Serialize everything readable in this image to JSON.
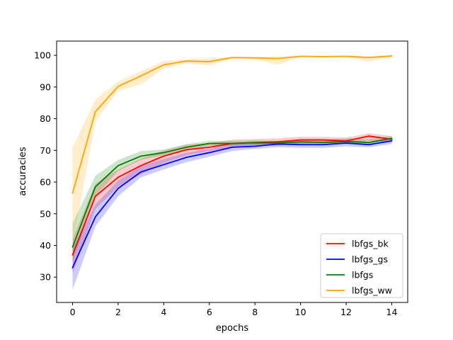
{
  "chart_data": {
    "type": "line",
    "title": "",
    "xlabel": "epochs",
    "ylabel": "accuracies",
    "xlim": [
      -0.7,
      14.7
    ],
    "ylim": [
      22,
      104.5
    ],
    "xticks": [
      0,
      2,
      4,
      6,
      8,
      10,
      12,
      14
    ],
    "yticks": [
      30,
      40,
      50,
      60,
      70,
      80,
      90,
      100
    ],
    "grid": false,
    "legend_position": "bottom-right",
    "x": [
      0,
      1,
      2,
      3,
      4,
      5,
      6,
      7,
      8,
      9,
      10,
      11,
      12,
      13,
      14
    ],
    "series": [
      {
        "name": "lbfgs_bk",
        "color": "#ff0000",
        "values": [
          37,
          55.5,
          61.5,
          65.2,
          68.2,
          70.2,
          71,
          72.2,
          72.5,
          72.7,
          73.3,
          73.3,
          73,
          74.5,
          73.5
        ],
        "lower": [
          31,
          51.5,
          58.5,
          62.5,
          66,
          68.5,
          69.8,
          71,
          71.5,
          71.5,
          72.2,
          72.4,
          72,
          73,
          72.5
        ],
        "upper": [
          42,
          59.5,
          64,
          67.5,
          70,
          71.8,
          72.3,
          73.4,
          73.6,
          73.8,
          74.3,
          74.3,
          74,
          75.4,
          74.5
        ]
      },
      {
        "name": "lbfgs_gs",
        "color": "#0000ff",
        "values": [
          33,
          49,
          58,
          63.2,
          65.5,
          67.8,
          69.3,
          71,
          71.3,
          72,
          71.8,
          71.8,
          72.3,
          71.8,
          73
        ],
        "lower": [
          26,
          46,
          55.5,
          61.5,
          64,
          66.3,
          68,
          69.8,
          70.5,
          71,
          70.8,
          70.8,
          71.3,
          71,
          72
        ],
        "upper": [
          39,
          53,
          60.5,
          65,
          67.3,
          69.3,
          70.5,
          72.3,
          72.3,
          73,
          72.8,
          72.8,
          73.3,
          72.7,
          73.8
        ]
      },
      {
        "name": "lbfgs",
        "color": "#008000",
        "values": [
          39.5,
          58.5,
          65.2,
          68.2,
          69.3,
          71,
          72.2,
          72.2,
          72.4,
          72.3,
          72.7,
          72.5,
          72.8,
          72.5,
          73.8
        ],
        "lower": [
          35,
          55.5,
          63.5,
          67,
          68.5,
          70.2,
          71.5,
          71.5,
          71.7,
          71.7,
          72,
          71.8,
          72,
          71.8,
          73
        ],
        "upper": [
          47,
          62,
          67,
          69.8,
          70.3,
          72,
          73,
          73,
          73.2,
          73,
          73.5,
          73.3,
          73.8,
          73.5,
          74.6
        ]
      },
      {
        "name": "lbfgs_ww",
        "color": "#ffa500",
        "values": [
          56.5,
          82.2,
          90.2,
          93.5,
          97,
          98.2,
          98,
          99.3,
          99.2,
          99,
          99.7,
          99.6,
          99.7,
          99.3,
          99.8
        ],
        "lower": [
          40,
          79,
          88.8,
          90.8,
          95.8,
          97.5,
          96.8,
          99,
          98.8,
          97,
          99.5,
          99.4,
          99.4,
          98,
          99.5
        ],
        "upper": [
          71,
          86,
          91.8,
          95,
          98.2,
          98.8,
          99,
          99.6,
          99.5,
          99.7,
          99.9,
          99.8,
          99.9,
          99.8,
          100
        ]
      }
    ]
  }
}
